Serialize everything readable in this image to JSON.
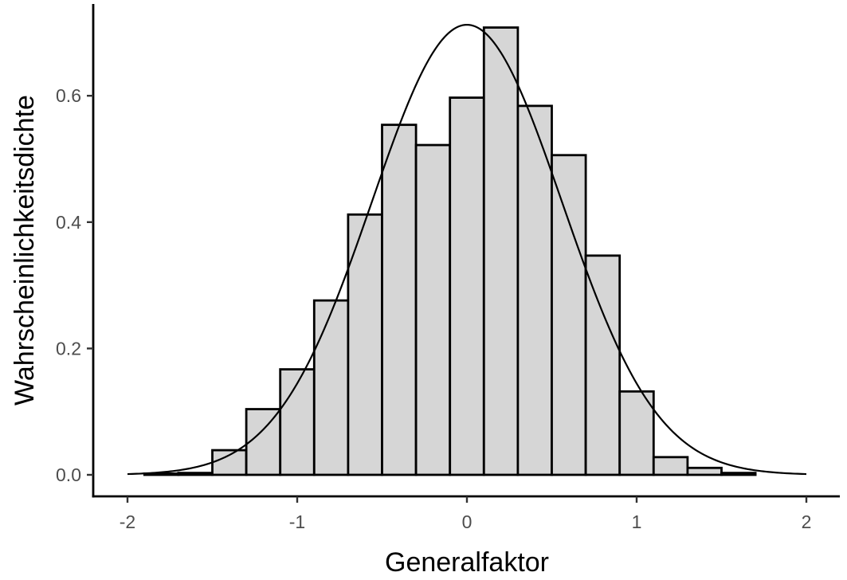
{
  "chart_data": {
    "type": "bar",
    "title": "",
    "xlabel": "Generalfaktor",
    "ylabel": "Wahrscheinlichkeitsdichte",
    "xlim": [
      -2,
      2
    ],
    "ylim": [
      0,
      0.72
    ],
    "x_ticks": [
      -2,
      -1,
      0,
      1,
      2
    ],
    "x_tick_labels": [
      "-2",
      "-1",
      "0",
      "1",
      "2"
    ],
    "y_ticks": [
      0,
      0.2,
      0.4,
      0.6
    ],
    "y_tick_labels": [
      "0.0",
      "0.2",
      "0.4",
      "0.6"
    ],
    "grid": false,
    "histogram": {
      "bin_width": 0.2,
      "bin_centers": [
        -1.8,
        -1.6,
        -1.4,
        -1.2,
        -1.0,
        -0.8,
        -0.6,
        -0.4,
        -0.2,
        0.0,
        0.2,
        0.4,
        0.6,
        0.8,
        1.0,
        1.2,
        1.4,
        1.6
      ],
      "density": [
        0.002,
        0.003,
        0.039,
        0.104,
        0.167,
        0.276,
        0.412,
        0.554,
        0.522,
        0.597,
        0.708,
        0.584,
        0.506,
        0.347,
        0.132,
        0.028,
        0.011,
        0.003
      ],
      "fill_color": "#d6d6d6",
      "edge_color": "#000000"
    },
    "curve": {
      "type": "normal-density",
      "mean": 0,
      "sd": 0.56,
      "x_range": [
        -2,
        2
      ],
      "color": "#000000"
    }
  }
}
